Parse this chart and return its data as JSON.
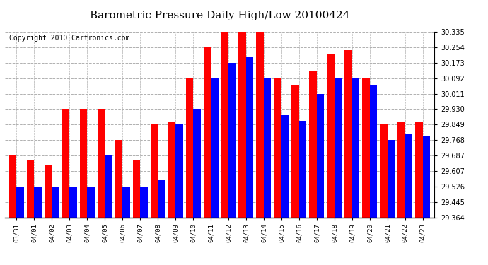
{
  "title": "Barometric Pressure Daily High/Low 20100424",
  "copyright": "Copyright 2010 Cartronics.com",
  "dates": [
    "03/31",
    "04/01",
    "04/02",
    "04/03",
    "04/04",
    "04/05",
    "04/06",
    "04/07",
    "04/08",
    "04/09",
    "04/10",
    "04/11",
    "04/12",
    "04/13",
    "04/14",
    "04/15",
    "04/16",
    "04/17",
    "04/18",
    "04/19",
    "04/20",
    "04/21",
    "04/22",
    "04/23"
  ],
  "highs": [
    29.687,
    29.66,
    29.64,
    29.93,
    29.93,
    29.93,
    29.77,
    29.66,
    29.849,
    29.86,
    30.092,
    30.254,
    30.335,
    30.335,
    30.335,
    30.092,
    30.057,
    30.13,
    30.22,
    30.24,
    30.092,
    29.849,
    29.86,
    29.86
  ],
  "lows": [
    29.526,
    29.526,
    29.526,
    29.526,
    29.526,
    29.687,
    29.526,
    29.526,
    29.56,
    29.849,
    29.93,
    30.092,
    30.173,
    30.2,
    30.092,
    29.9,
    29.87,
    30.011,
    30.092,
    30.092,
    30.057,
    29.768,
    29.8,
    29.787
  ],
  "yticks": [
    29.364,
    29.445,
    29.526,
    29.607,
    29.687,
    29.768,
    29.849,
    29.93,
    30.011,
    30.092,
    30.173,
    30.254,
    30.335
  ],
  "ymin": 29.364,
  "ymax": 30.335,
  "bar_color_high": "#ff0000",
  "bar_color_low": "#0000ff",
  "bg_color": "#ffffff",
  "grid_color": "#b0b0b0",
  "title_fontsize": 11,
  "copyright_fontsize": 7
}
